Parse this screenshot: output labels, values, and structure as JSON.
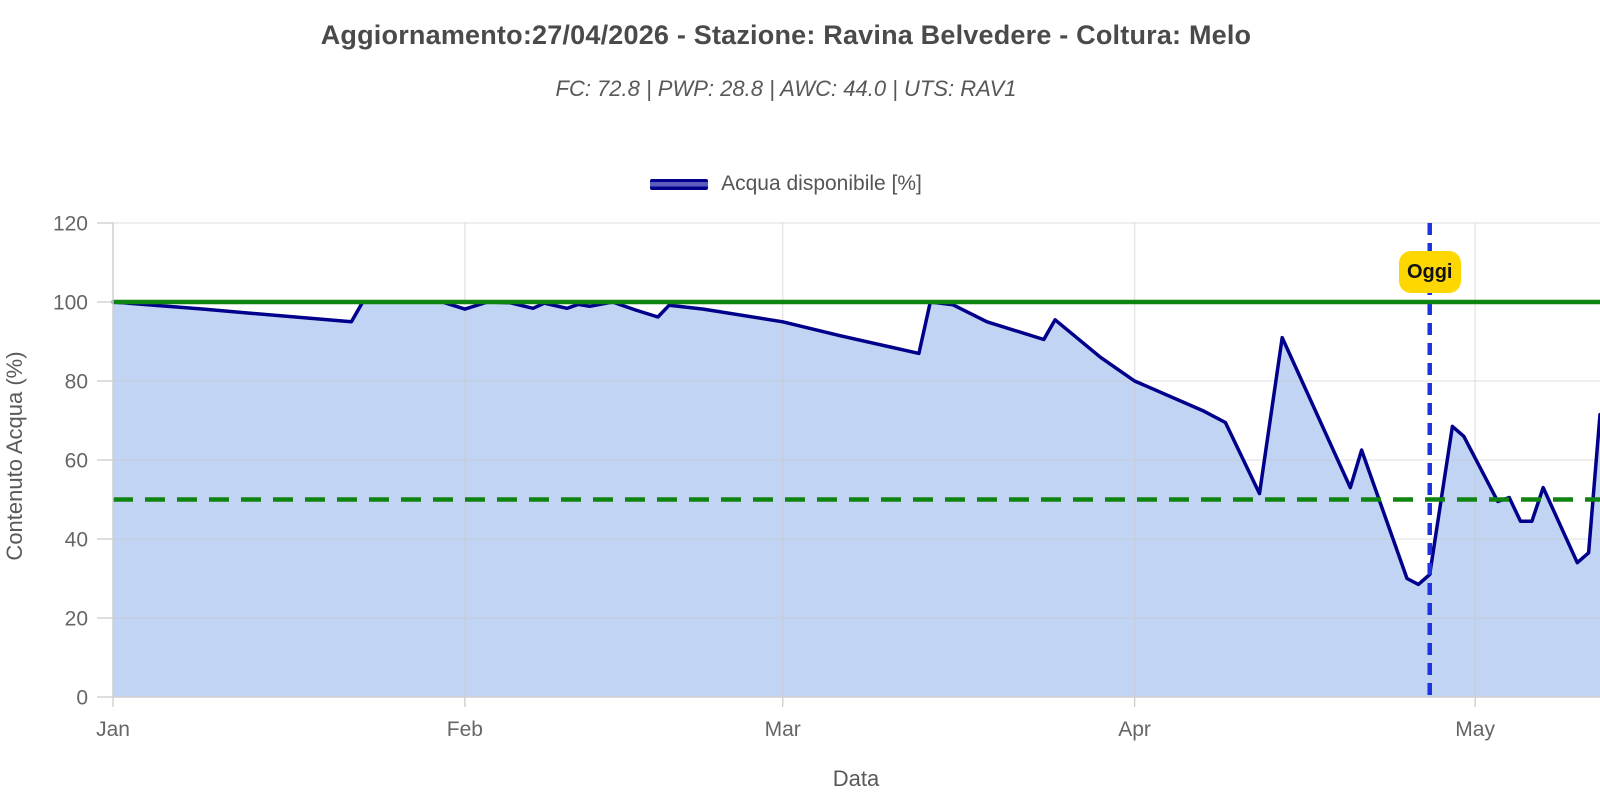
{
  "header": {
    "title": "Aggiornamento:27/04/2026 - Stazione: Ravina Belvedere - Coltura: Melo",
    "subtitle": "FC: 72.8 | PWP: 28.8 | AWC: 44.0 | UTS: RAV1"
  },
  "legend": {
    "items": [
      {
        "label": "Acqua disponibile [%]",
        "line_color": "#00008b"
      }
    ]
  },
  "chart_data": {
    "type": "area",
    "title": "Aggiornamento:27/04/2026 - Stazione: Ravina Belvedere - Coltura: Melo",
    "subtitle": "FC: 72.8 | PWP: 28.8 | AWC: 44.0 | UTS: RAV1",
    "xlabel": "Data",
    "ylabel": "Contenuto Acqua (%)",
    "ylim": [
      0,
      120
    ],
    "yticks": [
      0,
      20,
      40,
      60,
      80,
      100,
      120
    ],
    "xticks": [
      {
        "label": "Jan",
        "date": "2026-01-01"
      },
      {
        "label": "Feb",
        "date": "2026-02-01"
      },
      {
        "label": "Mar",
        "date": "2026-03-01"
      },
      {
        "label": "Apr",
        "date": "2026-04-01"
      },
      {
        "label": "May",
        "date": "2026-05-01"
      }
    ],
    "x_end_date": "2026-05-12",
    "grid": true,
    "legend_position": "top-center",
    "series": [
      {
        "name": "Acqua disponibile [%]",
        "line_color": "#00008b",
        "fill_color": "#c2d4f3",
        "points": [
          [
            "2026-01-01",
            100
          ],
          [
            "2026-01-09",
            98.2
          ],
          [
            "2026-01-13",
            97.2
          ],
          [
            "2026-01-22",
            95
          ],
          [
            "2026-01-23",
            100
          ],
          [
            "2026-01-30",
            100
          ],
          [
            "2026-02-01",
            98.2
          ],
          [
            "2026-02-03",
            100
          ],
          [
            "2026-02-05",
            99.8
          ],
          [
            "2026-02-07",
            98.4
          ],
          [
            "2026-02-08",
            99.7
          ],
          [
            "2026-02-10",
            98.4
          ],
          [
            "2026-02-11",
            99.4
          ],
          [
            "2026-02-12",
            98.9
          ],
          [
            "2026-02-14",
            100
          ],
          [
            "2026-02-16",
            98
          ],
          [
            "2026-02-18",
            96.2
          ],
          [
            "2026-02-19",
            99.2
          ],
          [
            "2026-02-22",
            98.2
          ],
          [
            "2026-03-01",
            95
          ],
          [
            "2026-03-06",
            91.5
          ],
          [
            "2026-03-13",
            87
          ],
          [
            "2026-03-14",
            100
          ],
          [
            "2026-03-16",
            99.3
          ],
          [
            "2026-03-19",
            95
          ],
          [
            "2026-03-24",
            90.5
          ],
          [
            "2026-03-25",
            95.5
          ],
          [
            "2026-03-29",
            86
          ],
          [
            "2026-04-01",
            80
          ],
          [
            "2026-04-07",
            72.5
          ],
          [
            "2026-04-09",
            69.5
          ],
          [
            "2026-04-12",
            51.5
          ],
          [
            "2026-04-14",
            91
          ],
          [
            "2026-04-20",
            53
          ],
          [
            "2026-04-21",
            62.5
          ],
          [
            "2026-04-25",
            30
          ],
          [
            "2026-04-26",
            28.5
          ],
          [
            "2026-04-27",
            31
          ],
          [
            "2026-04-29",
            68.5
          ],
          [
            "2026-04-30",
            66
          ],
          [
            "2026-05-03",
            49.5
          ],
          [
            "2026-05-04",
            50.5
          ],
          [
            "2026-05-05",
            44.5
          ],
          [
            "2026-05-06",
            44.5
          ],
          [
            "2026-05-07",
            53
          ],
          [
            "2026-05-10",
            34
          ],
          [
            "2026-05-11",
            36.5
          ],
          [
            "2026-05-12",
            71.5
          ]
        ]
      }
    ],
    "reference_lines": [
      {
        "name": "capacita-di-campo-100",
        "value": 100,
        "style": "solid",
        "color": "#108410"
      },
      {
        "name": "soglia-intervento-50",
        "value": 50,
        "style": "dashed",
        "color": "#108410"
      }
    ],
    "today_marker": {
      "label": "Oggi",
      "date": "2026-04-27",
      "line_color": "#1e32e0",
      "badge_bg": "#ffd700",
      "badge_text_color": "#111111"
    }
  }
}
